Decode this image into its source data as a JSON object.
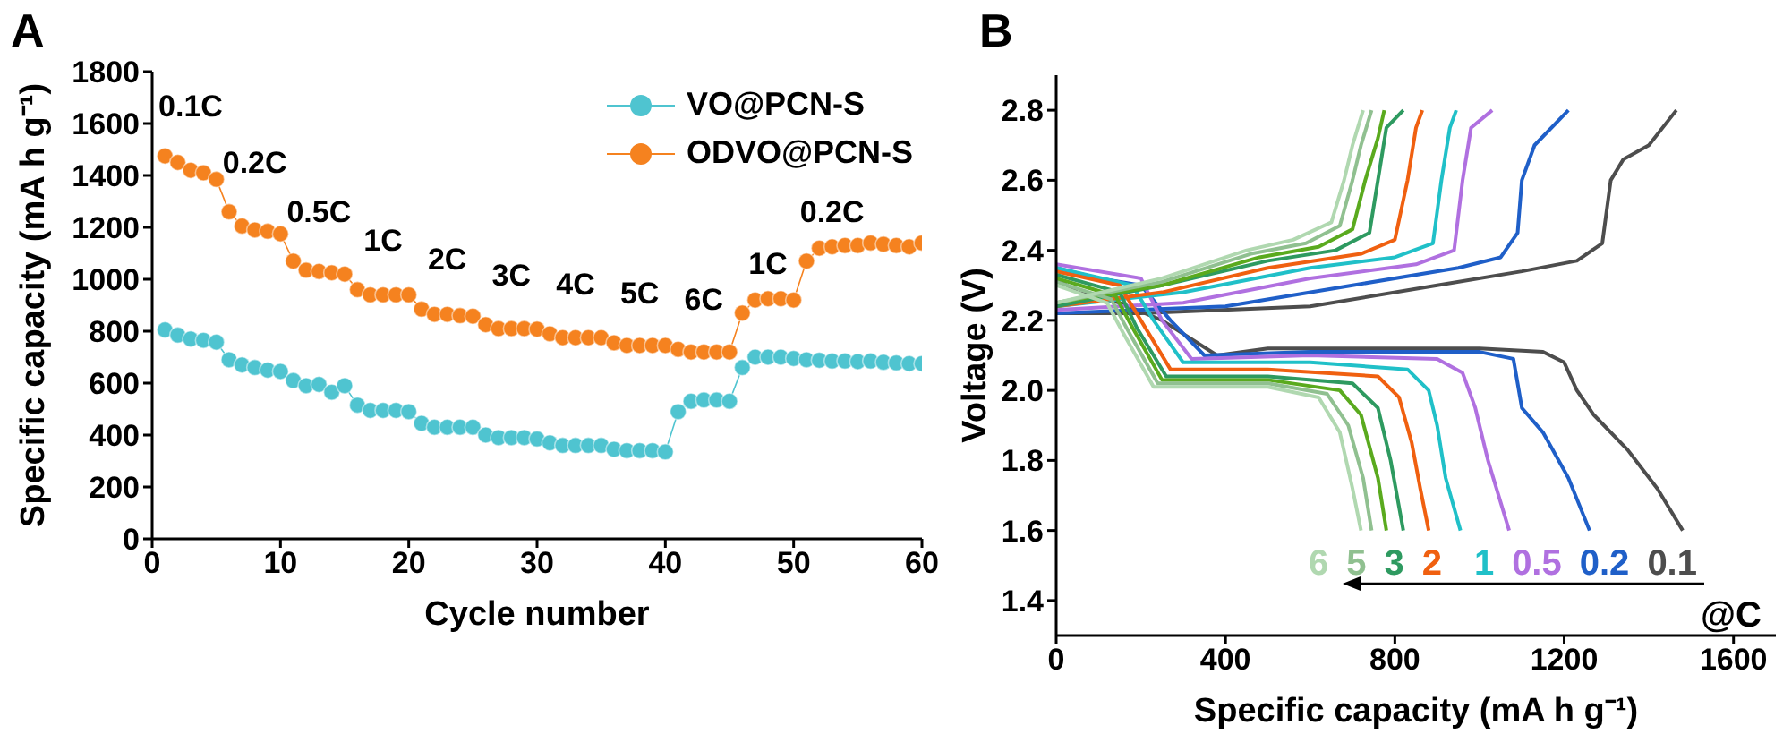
{
  "chart_data": [
    {
      "type": "line",
      "title": "A",
      "xlabel": "Cycle number",
      "ylabel": "Specific capacity (mA h g⁻¹)",
      "xlim": [
        0,
        60
      ],
      "xticks": [
        0,
        10,
        20,
        30,
        40,
        50,
        60
      ],
      "ylim": [
        0,
        1800
      ],
      "yticks": [
        0,
        200,
        400,
        600,
        800,
        1000,
        1200,
        1400,
        1600,
        1800
      ],
      "legend": "top right",
      "marker": "circle",
      "x": [
        1,
        2,
        3,
        4,
        5,
        6,
        7,
        8,
        9,
        10,
        11,
        12,
        13,
        14,
        15,
        16,
        17,
        18,
        19,
        20,
        21,
        22,
        23,
        24,
        25,
        26,
        27,
        28,
        29,
        30,
        31,
        32,
        33,
        34,
        35,
        36,
        37,
        38,
        39,
        40,
        41,
        42,
        43,
        44,
        45,
        46,
        47,
        48,
        49,
        50,
        51,
        52,
        53,
        54,
        55,
        56,
        57,
        58,
        59,
        60
      ],
      "series": [
        {
          "name": "VO@PCN-S",
          "color": "#4fc4d0",
          "values": [
            805,
            785,
            770,
            765,
            758,
            690,
            670,
            660,
            650,
            645,
            610,
            590,
            595,
            565,
            590,
            515,
            495,
            495,
            495,
            490,
            445,
            430,
            430,
            430,
            430,
            400,
            390,
            390,
            390,
            385,
            370,
            360,
            360,
            360,
            360,
            345,
            340,
            340,
            340,
            335,
            490,
            530,
            535,
            535,
            530,
            660,
            700,
            700,
            700,
            695,
            690,
            688,
            685,
            685,
            683,
            685,
            680,
            678,
            675,
            675
          ]
        },
        {
          "name": "ODVO@PCN-S",
          "color": "#f5821f",
          "values": [
            1475,
            1450,
            1420,
            1410,
            1385,
            1260,
            1205,
            1190,
            1185,
            1175,
            1070,
            1035,
            1030,
            1025,
            1020,
            960,
            940,
            940,
            940,
            940,
            885,
            865,
            865,
            860,
            858,
            825,
            810,
            810,
            810,
            808,
            790,
            775,
            775,
            775,
            775,
            755,
            745,
            745,
            745,
            745,
            730,
            720,
            720,
            720,
            720,
            870,
            920,
            925,
            925,
            920,
            1070,
            1120,
            1125,
            1130,
            1130,
            1140,
            1135,
            1130,
            1125,
            1140
          ]
        }
      ],
      "annotations": [
        "0.1C",
        "0.2C",
        "0.5C",
        "1C",
        "2C",
        "3C",
        "4C",
        "5C",
        "6C",
        "1C",
        "0.2C"
      ]
    },
    {
      "type": "line",
      "title": "B",
      "xlabel": "Specific capacity (mA h g⁻¹)",
      "ylabel": "Voltage (V)",
      "xlim": [
        0,
        1700
      ],
      "xticks": [
        0,
        400,
        800,
        1200,
        1600
      ],
      "ylim": [
        1.3,
        2.9
      ],
      "yticks": [
        1.4,
        1.6,
        1.8,
        {
          "value": 2,
          "label": "2.0"
        },
        2.2,
        2.4,
        2.6,
        2.8
      ],
      "marker": "none",
      "annotations": [
        "@C"
      ],
      "series": [
        {
          "name": "0.1",
          "color": "#4d4d4d",
          "x": [
            0,
            50,
            150,
            250,
            380,
            500,
            1000,
            1150,
            1200,
            1230,
            1270,
            1350,
            1420,
            1480
          ],
          "values": [
            2.32,
            2.28,
            2.25,
            2.2,
            2.1,
            2.12,
            2.12,
            2.11,
            2.08,
            2,
            1.93,
            1.83,
            1.72,
            1.6
          ]
        },
        {
          "color": "#4d4d4d",
          "x": [
            0,
            200,
            600,
            900,
            1100,
            1230,
            1290,
            1310,
            1340,
            1400,
            1465
          ],
          "values": [
            2.22,
            2.22,
            2.24,
            2.3,
            2.34,
            2.37,
            2.42,
            2.6,
            2.66,
            2.7,
            2.8
          ]
        },
        {
          "name": "0.2",
          "color": "#1f5fc8",
          "x": [
            0,
            100,
            200,
            270,
            350,
            600,
            1000,
            1080,
            1100,
            1150,
            1210,
            1260
          ],
          "values": [
            2.35,
            2.32,
            2.3,
            2.2,
            2.1,
            2.11,
            2.11,
            2.09,
            1.95,
            1.88,
            1.75,
            1.6
          ]
        },
        {
          "color": "#1f5fc8",
          "x": [
            0,
            400,
            700,
            950,
            1050,
            1090,
            1100,
            1130,
            1210
          ],
          "values": [
            2.22,
            2.24,
            2.3,
            2.35,
            2.38,
            2.45,
            2.6,
            2.7,
            2.8
          ]
        },
        {
          "name": "0.5",
          "color": "#b070e0",
          "x": [
            0,
            200,
            250,
            320,
            600,
            900,
            960,
            990,
            1020,
            1070
          ],
          "values": [
            2.36,
            2.32,
            2.2,
            2.09,
            2.1,
            2.09,
            2.05,
            1.95,
            1.8,
            1.6
          ]
        },
        {
          "color": "#b070e0",
          "x": [
            0,
            300,
            600,
            850,
            940,
            960,
            980,
            1030
          ],
          "values": [
            2.23,
            2.25,
            2.32,
            2.36,
            2.4,
            2.6,
            2.75,
            2.8
          ]
        },
        {
          "name": "1",
          "color": "#20c0c8",
          "x": [
            0,
            180,
            230,
            300,
            600,
            830,
            880,
            900,
            920,
            955
          ],
          "values": [
            2.35,
            2.3,
            2.2,
            2.08,
            2.08,
            2.06,
            2,
            1.9,
            1.75,
            1.6
          ]
        },
        {
          "color": "#20c0c8",
          "x": [
            0,
            300,
            600,
            800,
            890,
            910,
            930,
            945
          ],
          "values": [
            2.24,
            2.28,
            2.35,
            2.38,
            2.42,
            2.6,
            2.75,
            2.8
          ]
        },
        {
          "name": "2",
          "color": "#f06010",
          "x": [
            0,
            150,
            200,
            270,
            500,
            760,
            810,
            840,
            860,
            880
          ],
          "values": [
            2.34,
            2.3,
            2.2,
            2.06,
            2.06,
            2.04,
            1.98,
            1.85,
            1.72,
            1.6
          ]
        },
        {
          "color": "#f06010",
          "x": [
            0,
            250,
            500,
            720,
            800,
            830,
            850,
            865
          ],
          "values": [
            2.24,
            2.28,
            2.35,
            2.39,
            2.43,
            2.6,
            2.75,
            2.8
          ]
        },
        {
          "name": "3",
          "color": "#2e9a60",
          "x": [
            0,
            150,
            190,
            260,
            500,
            700,
            760,
            790,
            820
          ],
          "values": [
            2.33,
            2.28,
            2.18,
            2.04,
            2.04,
            2.02,
            1.95,
            1.8,
            1.6
          ]
        },
        {
          "color": "#2e9a60",
          "x": [
            0,
            250,
            500,
            660,
            740,
            760,
            780,
            820
          ],
          "values": [
            2.24,
            2.3,
            2.37,
            2.4,
            2.45,
            2.6,
            2.75,
            2.8
          ]
        },
        {
          "color": "#5aaa1e",
          "x": [
            0,
            140,
            180,
            250,
            500,
            670,
            720,
            760,
            780
          ],
          "values": [
            2.32,
            2.27,
            2.18,
            2.03,
            2.03,
            2,
            1.93,
            1.75,
            1.6
          ]
        },
        {
          "color": "#5aaa1e",
          "x": [
            0,
            250,
            480,
            620,
            700,
            730,
            760,
            775
          ],
          "values": [
            2.25,
            2.3,
            2.38,
            2.41,
            2.46,
            2.6,
            2.72,
            2.8
          ]
        },
        {
          "name": "5",
          "color": "#90c090",
          "x": [
            0,
            130,
            170,
            240,
            500,
            640,
            690,
            725,
            745
          ],
          "values": [
            2.31,
            2.26,
            2.17,
            2.02,
            2.02,
            1.99,
            1.9,
            1.75,
            1.6
          ]
        },
        {
          "color": "#90c090",
          "x": [
            0,
            250,
            460,
            590,
            670,
            700,
            720,
            745
          ],
          "values": [
            2.25,
            2.31,
            2.39,
            2.42,
            2.47,
            2.6,
            2.7,
            2.8
          ]
        },
        {
          "name": "6",
          "color": "#b0d8b0",
          "x": [
            0,
            120,
            160,
            230,
            500,
            620,
            670,
            700,
            720
          ],
          "values": [
            2.3,
            2.25,
            2.16,
            2.01,
            2.01,
            1.98,
            1.88,
            1.72,
            1.6
          ]
        },
        {
          "color": "#b0d8b0",
          "x": [
            0,
            250,
            450,
            560,
            650,
            680,
            700,
            725
          ],
          "values": [
            2.25,
            2.32,
            2.4,
            2.43,
            2.48,
            2.6,
            2.7,
            2.8
          ]
        }
      ]
    }
  ]
}
